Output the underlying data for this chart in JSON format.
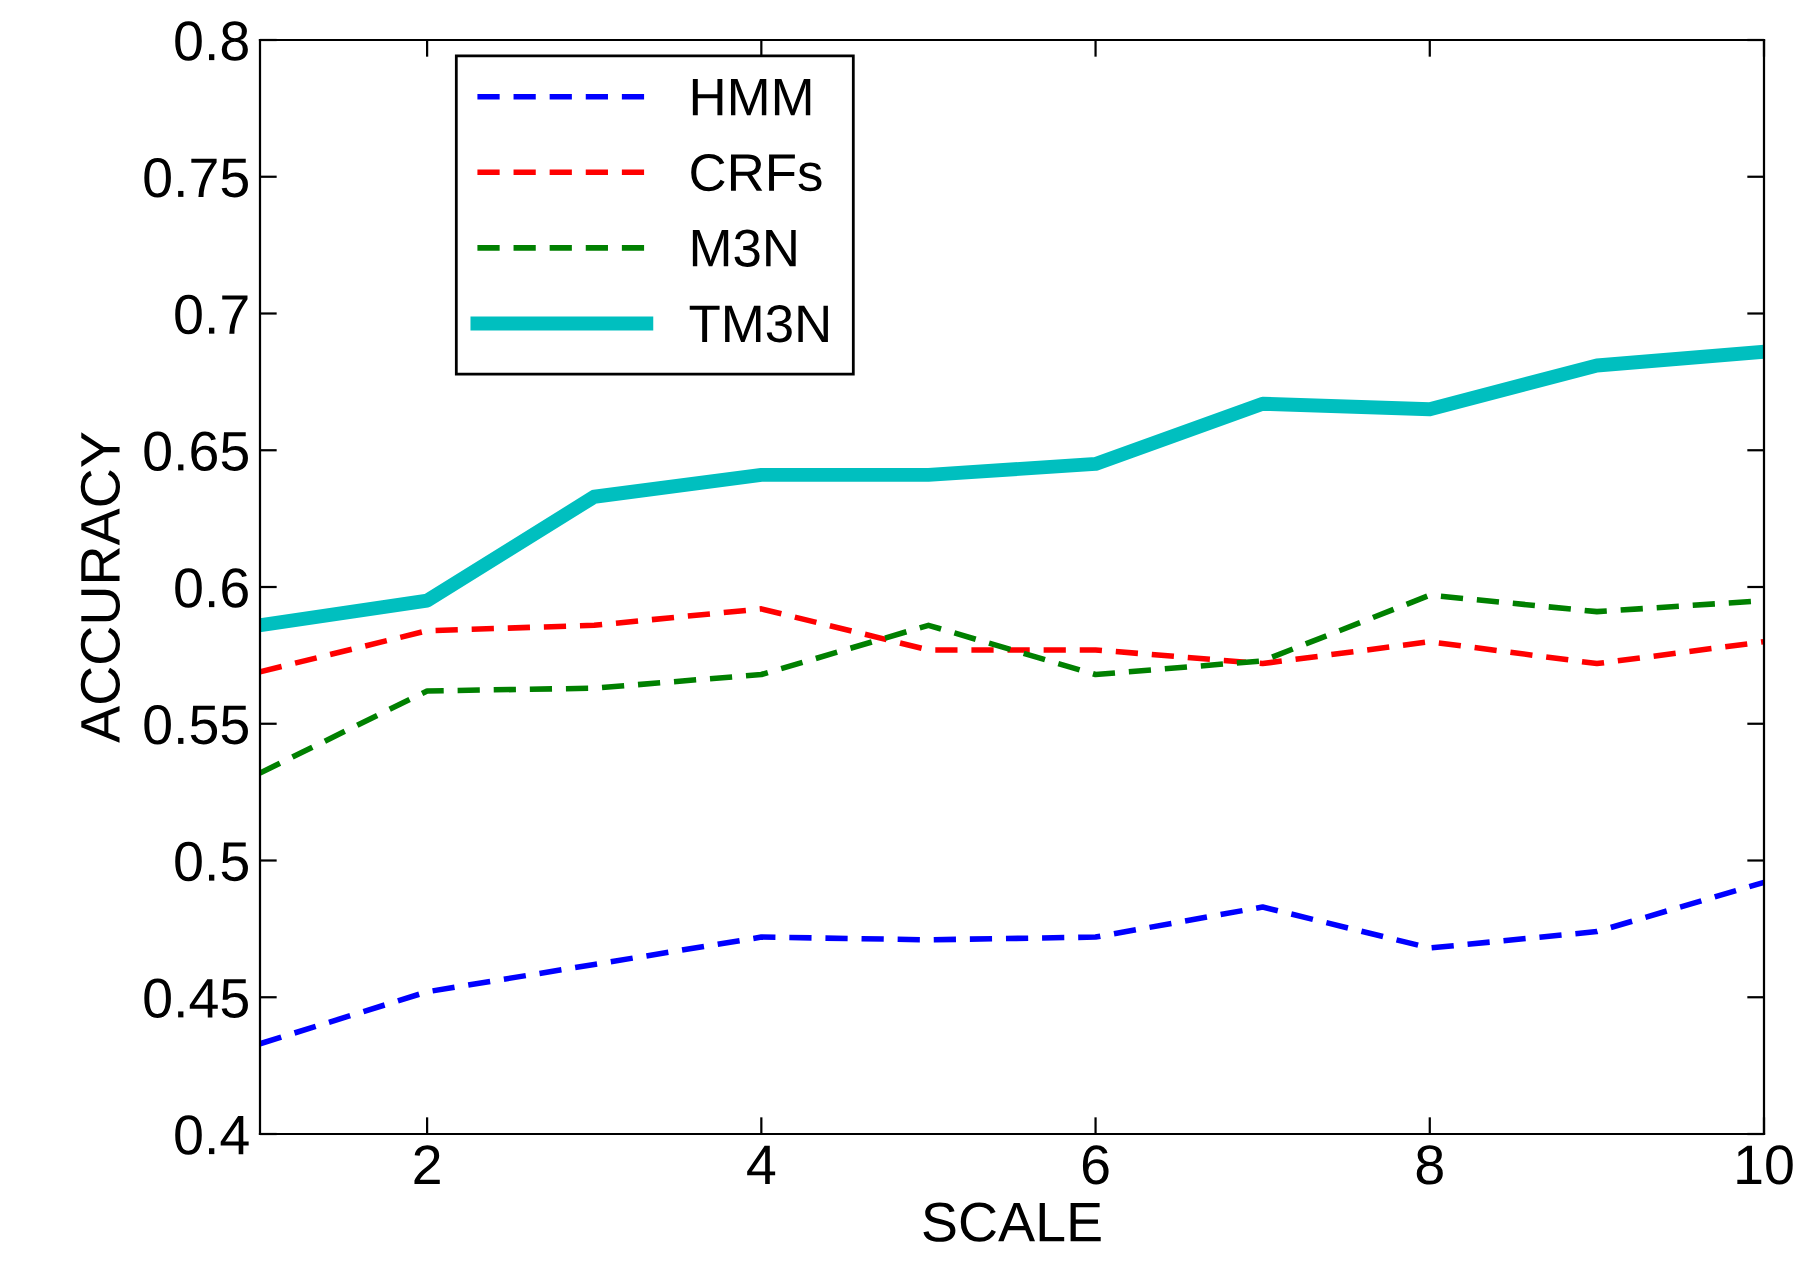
{
  "chart_data": {
    "type": "line",
    "xlabel": "SCALE",
    "ylabel": "ACCURACY",
    "x": [
      1,
      2,
      3,
      4,
      5,
      6,
      7,
      8,
      9,
      10
    ],
    "series": [
      {
        "name": "HMM",
        "color": "#0000ff",
        "line_style": "dashed",
        "values": [
          0.433,
          0.452,
          0.462,
          0.472,
          0.471,
          0.472,
          0.483,
          0.468,
          0.474,
          0.492
        ]
      },
      {
        "name": "CRFs",
        "color": "#ff0000",
        "line_style": "dashed",
        "values": [
          0.569,
          0.584,
          0.586,
          0.592,
          0.577,
          0.577,
          0.572,
          0.58,
          0.572,
          0.58
        ]
      },
      {
        "name": "M3N",
        "color": "#008000",
        "line_style": "dashed",
        "values": [
          0.532,
          0.562,
          0.563,
          0.568,
          0.586,
          0.568,
          0.573,
          0.597,
          0.591,
          0.595
        ]
      },
      {
        "name": "TM3N",
        "color": "#00bfbf",
        "line_style": "solid",
        "values": [
          0.586,
          0.595,
          0.633,
          0.641,
          0.641,
          0.645,
          0.667,
          0.665,
          0.681,
          0.686
        ]
      }
    ],
    "xlim": [
      1,
      10
    ],
    "xticks": [
      2,
      4,
      6,
      8,
      10
    ],
    "ylim": [
      0.4,
      0.8
    ],
    "yticks": [
      0.4,
      0.45,
      0.5,
      0.55,
      0.6,
      0.65,
      0.7,
      0.75,
      0.8
    ],
    "grid": false,
    "legend": "top left",
    "marker": "none"
  }
}
